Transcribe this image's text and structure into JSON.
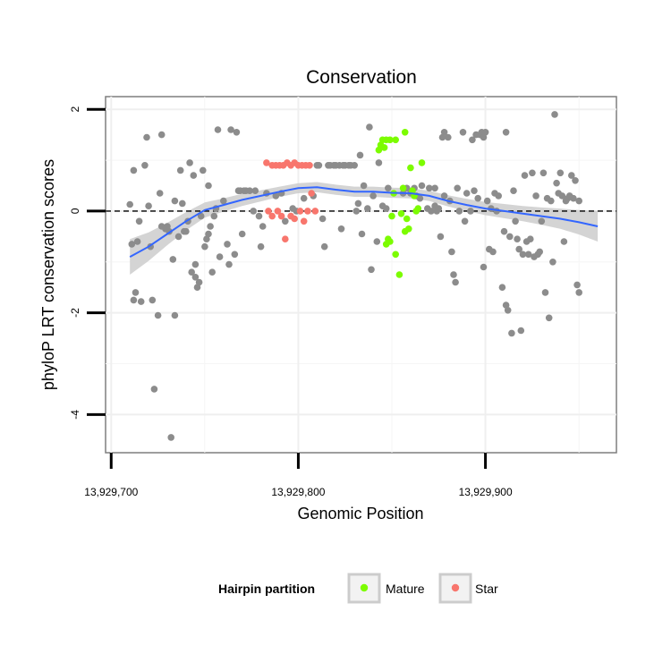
{
  "chart_data": {
    "type": "scatter",
    "title": "Conservation",
    "xlabel": "Genomic Position",
    "ylabel": "phyloP LRT conservation scores",
    "xlim": [
      13929697,
      13929970
    ],
    "ylim": [
      -4.75,
      2.25
    ],
    "x_ticks": [
      13929700,
      13929800,
      13929900
    ],
    "x_tick_labels": [
      "13,929,700",
      "13,929,800",
      "13,929,900"
    ],
    "y_ticks": [
      2,
      0,
      -2,
      -4
    ],
    "y_tick_labels": [
      "2",
      "0",
      "-2",
      "-4"
    ],
    "grid": true,
    "reference_line": {
      "y": 0,
      "style": "dashed"
    },
    "legend": {
      "title": "Hairpin partition",
      "position": "bottom",
      "entries": [
        {
          "label": "Mature",
          "color": "#7CFC00"
        },
        {
          "label": "Star",
          "color": "#F8766D"
        }
      ]
    },
    "colors": {
      "other": "#8c8c8c",
      "mature": "#7CFC00",
      "star": "#F8766D",
      "smooth": "#3366FF",
      "ribbon": "#cccccc"
    },
    "series": [
      {
        "group": "other",
        "points": [
          [
            13929710,
            0.13
          ],
          [
            13929711,
            -0.65
          ],
          [
            13929712,
            0.8
          ],
          [
            13929713,
            -1.6
          ],
          [
            13929712,
            -1.75
          ],
          [
            13929715,
            -0.2
          ],
          [
            13929714,
            -0.6
          ],
          [
            13929716,
            -1.78
          ],
          [
            13929718,
            0.9
          ],
          [
            13929719,
            1.45
          ],
          [
            13929720,
            0.1
          ],
          [
            13929721,
            -0.7
          ],
          [
            13929722,
            -1.75
          ],
          [
            13929723,
            -3.5
          ],
          [
            13929725,
            -2.05
          ],
          [
            13929726,
            0.35
          ],
          [
            13929727,
            1.5
          ],
          [
            13929727,
            -0.3
          ],
          [
            13929729,
            -0.35
          ],
          [
            13929730,
            -0.3
          ],
          [
            13929731,
            -0.4
          ],
          [
            13929732,
            -4.45
          ],
          [
            13929733,
            -0.95
          ],
          [
            13929734,
            -2.05
          ],
          [
            13929734,
            0.2
          ],
          [
            13929736,
            -0.5
          ],
          [
            13929737,
            0.8
          ],
          [
            13929738,
            0.15
          ],
          [
            13929739,
            -0.4
          ],
          [
            13929740,
            -0.4
          ],
          [
            13929741,
            -0.2
          ],
          [
            13929742,
            0.95
          ],
          [
            13929743,
            -1.2
          ],
          [
            13929744,
            0.7
          ],
          [
            13929745,
            -1.3
          ],
          [
            13929745,
            -1.05
          ],
          [
            13929746,
            -1.5
          ],
          [
            13929747,
            -1.4
          ],
          [
            13929748,
            -0.1
          ],
          [
            13929749,
            0.8
          ],
          [
            13929750,
            -0.7
          ],
          [
            13929751,
            -0.55
          ],
          [
            13929752,
            0.5
          ],
          [
            13929752,
            -0.45
          ],
          [
            13929753,
            -0.3
          ],
          [
            13929754,
            -1.2
          ],
          [
            13929755,
            -0.1
          ],
          [
            13929756,
            0.05
          ],
          [
            13929757,
            1.6
          ],
          [
            13929758,
            -0.9
          ],
          [
            13929760,
            0.2
          ],
          [
            13929762,
            -0.65
          ],
          [
            13929763,
            -1.05
          ],
          [
            13929764,
            1.6
          ],
          [
            13929766,
            -0.85
          ],
          [
            13929767,
            1.55
          ],
          [
            13929768,
            0.4
          ],
          [
            13929769,
            0.4
          ],
          [
            13929770,
            -0.45
          ],
          [
            13929771,
            0.4
          ],
          [
            13929772,
            0.4
          ],
          [
            13929774,
            0.4
          ],
          [
            13929776,
            0.0
          ],
          [
            13929777,
            0.4
          ],
          [
            13929779,
            -0.1
          ],
          [
            13929780,
            -0.7
          ],
          [
            13929781,
            -0.3
          ],
          [
            13929783,
            0.35
          ],
          [
            13929788,
            0.3
          ],
          [
            13929791,
            0.35
          ],
          [
            13929793,
            -0.2
          ],
          [
            13929797,
            0.05
          ],
          [
            13929799,
            0.0
          ],
          [
            13929803,
            0.25
          ],
          [
            13929808,
            0.3
          ],
          [
            13929810,
            0.9
          ],
          [
            13929811,
            0.9
          ],
          [
            13929813,
            -0.15
          ],
          [
            13929814,
            -0.7
          ],
          [
            13929816,
            0.9
          ],
          [
            13929817,
            0.9
          ],
          [
            13929819,
            0.9
          ],
          [
            13929820,
            0.9
          ],
          [
            13929822,
            0.9
          ],
          [
            13929823,
            -0.35
          ],
          [
            13929824,
            0.9
          ],
          [
            13929825,
            0.9
          ],
          [
            13929827,
            0.9
          ],
          [
            13929828,
            0.9
          ],
          [
            13929830,
            0.9
          ],
          [
            13929831,
            0.0
          ],
          [
            13929832,
            0.15
          ],
          [
            13929833,
            1.1
          ],
          [
            13929834,
            -0.45
          ],
          [
            13929835,
            0.5
          ],
          [
            13929837,
            0.05
          ],
          [
            13929838,
            1.65
          ],
          [
            13929839,
            -1.15
          ],
          [
            13929840,
            0.3
          ],
          [
            13929842,
            -0.6
          ],
          [
            13929843,
            0.95
          ],
          [
            13929845,
            0.1
          ],
          [
            13929847,
            0.05
          ],
          [
            13929848,
            0.45
          ],
          [
            13929856,
            0.35
          ],
          [
            13929858,
            0.45
          ],
          [
            13929860,
            0.35
          ],
          [
            13929862,
            0.45
          ],
          [
            13929863,
            0.3
          ],
          [
            13929865,
            0.25
          ],
          [
            13929866,
            0.5
          ],
          [
            13929869,
            0.05
          ],
          [
            13929870,
            0.45
          ],
          [
            13929871,
            0.0
          ],
          [
            13929873,
            0.45
          ],
          [
            13929873,
            0.1
          ],
          [
            13929874,
            0.0
          ],
          [
            13929875,
            0.05
          ],
          [
            13929876,
            -0.5
          ],
          [
            13929877,
            1.45
          ],
          [
            13929878,
            1.55
          ],
          [
            13929878,
            0.3
          ],
          [
            13929880,
            1.45
          ],
          [
            13929881,
            0.2
          ],
          [
            13929882,
            -0.8
          ],
          [
            13929883,
            -1.25
          ],
          [
            13929884,
            -1.4
          ],
          [
            13929885,
            0.45
          ],
          [
            13929886,
            0.0
          ],
          [
            13929888,
            1.55
          ],
          [
            13929889,
            -0.2
          ],
          [
            13929890,
            0.35
          ],
          [
            13929892,
            0.0
          ],
          [
            13929893,
            1.4
          ],
          [
            13929894,
            0.4
          ],
          [
            13929895,
            1.5
          ],
          [
            13929896,
            0.25
          ],
          [
            13929897,
            1.5
          ],
          [
            13929898,
            1.55
          ],
          [
            13929899,
            1.45
          ],
          [
            13929899,
            -1.1
          ],
          [
            13929900,
            1.55
          ],
          [
            13929901,
            0.2
          ],
          [
            13929902,
            -0.75
          ],
          [
            13929903,
            0.05
          ],
          [
            13929904,
            -0.8
          ],
          [
            13929905,
            0.35
          ],
          [
            13929906,
            0.0
          ],
          [
            13929907,
            0.3
          ],
          [
            13929909,
            -1.5
          ],
          [
            13929910,
            -0.4
          ],
          [
            13929911,
            -1.85
          ],
          [
            13929911,
            1.55
          ],
          [
            13929912,
            -1.95
          ],
          [
            13929913,
            -0.5
          ],
          [
            13929914,
            -2.4
          ],
          [
            13929915,
            0.4
          ],
          [
            13929916,
            -0.2
          ],
          [
            13929917,
            -0.55
          ],
          [
            13929918,
            -0.75
          ],
          [
            13929919,
            -2.35
          ],
          [
            13929920,
            -0.85
          ],
          [
            13929921,
            0.7
          ],
          [
            13929922,
            -0.6
          ],
          [
            13929923,
            -0.85
          ],
          [
            13929924,
            -0.55
          ],
          [
            13929925,
            0.75
          ],
          [
            13929926,
            -0.9
          ],
          [
            13929927,
            0.3
          ],
          [
            13929928,
            -0.85
          ],
          [
            13929929,
            -0.8
          ],
          [
            13929930,
            -0.2
          ],
          [
            13929931,
            0.75
          ],
          [
            13929932,
            -1.6
          ],
          [
            13929933,
            0.25
          ],
          [
            13929934,
            -2.1
          ],
          [
            13929935,
            0.2
          ],
          [
            13929936,
            -1.0
          ],
          [
            13929937,
            1.9
          ],
          [
            13929938,
            0.55
          ],
          [
            13929939,
            0.35
          ],
          [
            13929940,
            0.75
          ],
          [
            13929941,
            0.3
          ],
          [
            13929942,
            -0.6
          ],
          [
            13929943,
            0.2
          ],
          [
            13929944,
            0.25
          ],
          [
            13929945,
            0.3
          ],
          [
            13929946,
            0.7
          ],
          [
            13929947,
            0.25
          ],
          [
            13929948,
            0.6
          ],
          [
            13929949,
            -1.45
          ],
          [
            13929950,
            -1.6
          ],
          [
            13929950,
            0.2
          ]
        ]
      },
      {
        "group": "mature",
        "name": "Mature",
        "points": [
          [
            13929843,
            1.2
          ],
          [
            13929844,
            1.3
          ],
          [
            13929845,
            1.4
          ],
          [
            13929846,
            1.25
          ],
          [
            13929847,
            1.4
          ],
          [
            13929849,
            1.4
          ],
          [
            13929852,
            1.4
          ],
          [
            13929857,
            1.55
          ],
          [
            13929848,
            -0.55
          ],
          [
            13929849,
            -0.6
          ],
          [
            13929850,
            -0.1
          ],
          [
            13929852,
            -0.85
          ],
          [
            13929854,
            -1.25
          ],
          [
            13929855,
            -0.05
          ],
          [
            13929856,
            0.45
          ],
          [
            13929857,
            -0.4
          ],
          [
            13929858,
            -0.15
          ],
          [
            13929859,
            -0.35
          ],
          [
            13929860,
            0.85
          ],
          [
            13929861,
            0.4
          ],
          [
            13929862,
            0.3
          ],
          [
            13929863,
            0.0
          ],
          [
            13929864,
            0.05
          ],
          [
            13929866,
            0.95
          ],
          [
            13929847,
            -0.65
          ],
          [
            13929851,
            0.35
          ]
        ]
      },
      {
        "group": "star",
        "name": "Star",
        "points": [
          [
            13929783,
            0.95
          ],
          [
            13929786,
            0.9
          ],
          [
            13929788,
            0.9
          ],
          [
            13929790,
            0.9
          ],
          [
            13929792,
            0.9
          ],
          [
            13929794,
            0.95
          ],
          [
            13929796,
            0.9
          ],
          [
            13929798,
            0.95
          ],
          [
            13929800,
            0.9
          ],
          [
            13929802,
            0.9
          ],
          [
            13929804,
            0.9
          ],
          [
            13929806,
            0.9
          ],
          [
            13929784,
            0.0
          ],
          [
            13929786,
            -0.1
          ],
          [
            13929789,
            0.0
          ],
          [
            13929791,
            -0.1
          ],
          [
            13929793,
            -0.55
          ],
          [
            13929796,
            -0.1
          ],
          [
            13929798,
            -0.15
          ],
          [
            13929801,
            0.0
          ],
          [
            13929803,
            -0.2
          ],
          [
            13929805,
            0.0
          ],
          [
            13929807,
            0.35
          ],
          [
            13929809,
            0.0
          ]
        ]
      }
    ],
    "smooth": {
      "x": [
        13929710,
        13929720,
        13929730,
        13929740,
        13929750,
        13929760,
        13929770,
        13929780,
        13929790,
        13929800,
        13929810,
        13929820,
        13929830,
        13929840,
        13929850,
        13929860,
        13929870,
        13929880,
        13929890,
        13929900,
        13929910,
        13929920,
        13929930,
        13929940,
        13929950,
        13929960
      ],
      "y": [
        -0.9,
        -0.7,
        -0.45,
        -0.2,
        0.02,
        0.12,
        0.22,
        0.3,
        0.38,
        0.45,
        0.47,
        0.42,
        0.38,
        0.38,
        0.36,
        0.35,
        0.3,
        0.2,
        0.12,
        0.05,
        0.0,
        -0.05,
        -0.1,
        -0.15,
        -0.22,
        -0.3
      ],
      "se": [
        0.35,
        0.28,
        0.22,
        0.18,
        0.15,
        0.13,
        0.12,
        0.11,
        0.1,
        0.1,
        0.1,
        0.1,
        0.1,
        0.1,
        0.1,
        0.1,
        0.1,
        0.11,
        0.12,
        0.13,
        0.14,
        0.15,
        0.17,
        0.2,
        0.24,
        0.3
      ]
    }
  }
}
